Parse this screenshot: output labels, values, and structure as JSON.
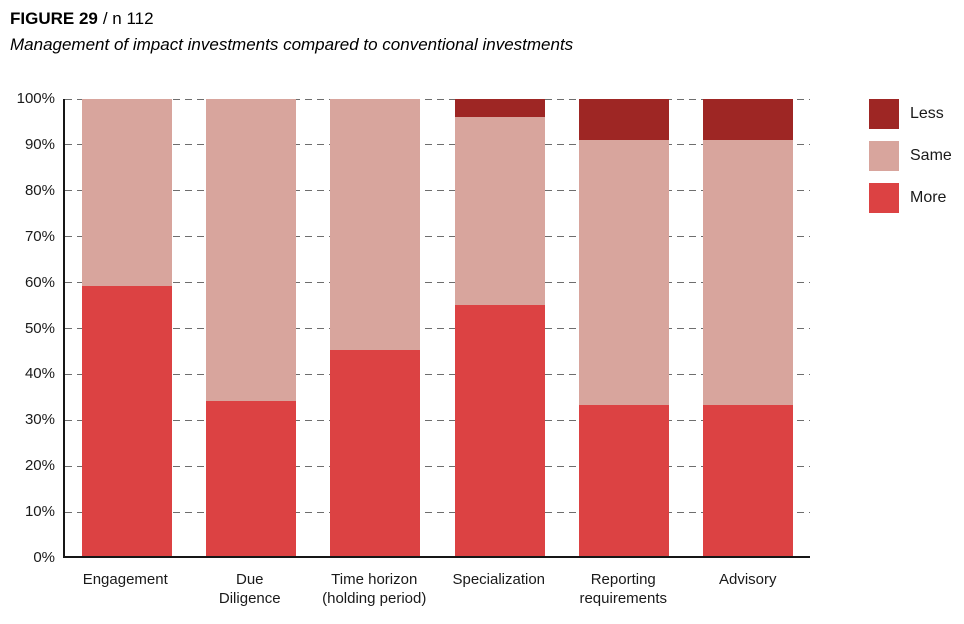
{
  "header": {
    "figure_label": "FIGURE 29",
    "figure_n": "/ n 112",
    "subtitle": "Management of impact investments compared to conventional investments"
  },
  "chart_data": {
    "type": "bar",
    "stacked": true,
    "title": "FIGURE 29 / n 112",
    "subtitle": "Management of impact investments compared to conventional investments",
    "categories": [
      "Engagement",
      "Due\nDiligence",
      "Time horizon\n(holding period)",
      "Specialization",
      "Reporting\nrequirements",
      "Advisory"
    ],
    "series": [
      {
        "name": "More",
        "color": "#dc4243",
        "values": [
          59,
          34,
          45,
          55,
          33,
          33
        ]
      },
      {
        "name": "Same",
        "color": "#d8a59d",
        "values": [
          41,
          66,
          55,
          41,
          58,
          58
        ]
      },
      {
        "name": "Less",
        "color": "#9e2624",
        "values": [
          0,
          0,
          0,
          4,
          9,
          9
        ]
      }
    ],
    "legend": {
      "position": "top-right",
      "order": [
        "Less",
        "Same",
        "More"
      ]
    },
    "y_axis": {
      "ticks": [
        "0%",
        "10%",
        "20%",
        "30%",
        "40%",
        "50%",
        "60%",
        "70%",
        "80%",
        "90%",
        "100%"
      ],
      "min": 0,
      "max": 100,
      "grid": "dashed",
      "unit": "%"
    },
    "x_axis": {
      "label": ""
    }
  }
}
